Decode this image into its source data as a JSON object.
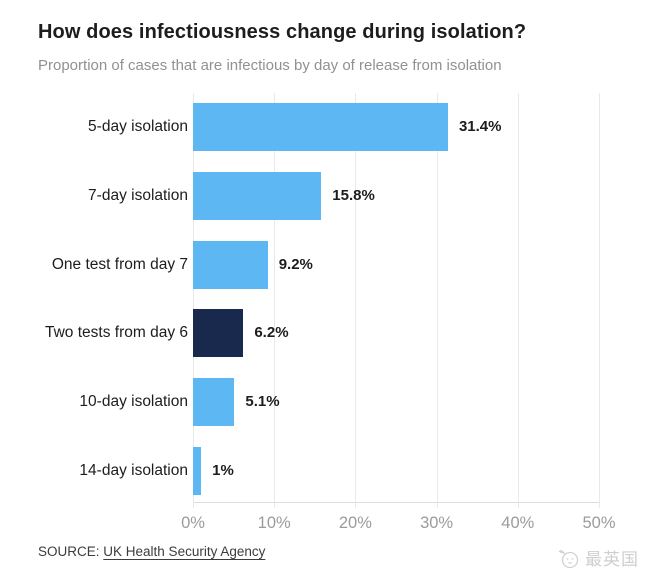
{
  "header": {
    "title": "How does infectiousness change during isolation?",
    "subtitle": "Proportion of cases that are infectious by day of release from isolation"
  },
  "chart_data": {
    "type": "bar",
    "orientation": "horizontal",
    "title": "How does infectiousness change during isolation?",
    "subtitle": "Proportion of cases that are infectious by day of release from isolation",
    "categories": [
      "5-day isolation",
      "7-day isolation",
      "One test from day 7",
      "Two tests from day 6",
      "10-day isolation",
      "14-day isolation"
    ],
    "values": [
      31.4,
      15.8,
      9.2,
      6.2,
      5.1,
      1
    ],
    "value_labels": [
      "31.4%",
      "15.8%",
      "9.2%",
      "6.2%",
      "5.1%",
      "1%"
    ],
    "bar_colors": [
      "#5db7f3",
      "#5db7f3",
      "#5db7f3",
      "#18294d",
      "#5db7f3",
      "#5db7f3"
    ],
    "xlim": [
      0,
      50
    ],
    "x_tick_values": [
      0,
      10,
      20,
      30,
      40,
      50
    ],
    "x_tick_labels": [
      "0%",
      "10%",
      "20%",
      "30%",
      "40%",
      "50%"
    ],
    "grid": "vertical",
    "legend": "none",
    "xlabel": "",
    "ylabel": ""
  },
  "footer": {
    "source_prefix": "SOURCE:",
    "source_link": "UK Health Security Agency"
  },
  "watermark": {
    "icon": "chick-logo-icon",
    "text": "最英国"
  },
  "colors": {
    "bar_blue": "#5db7f3",
    "bar_navy": "#18294d",
    "gridline": "#e9e9e9",
    "axis_line": "#dcdcdc",
    "title_text": "#1d1d1d",
    "subtitle_text": "#919191",
    "tick_text": "#9b9b9b",
    "value_text": "#1d1d1d",
    "source_text": "#3c3c3c",
    "watermark_text": "#cfcfcf"
  }
}
